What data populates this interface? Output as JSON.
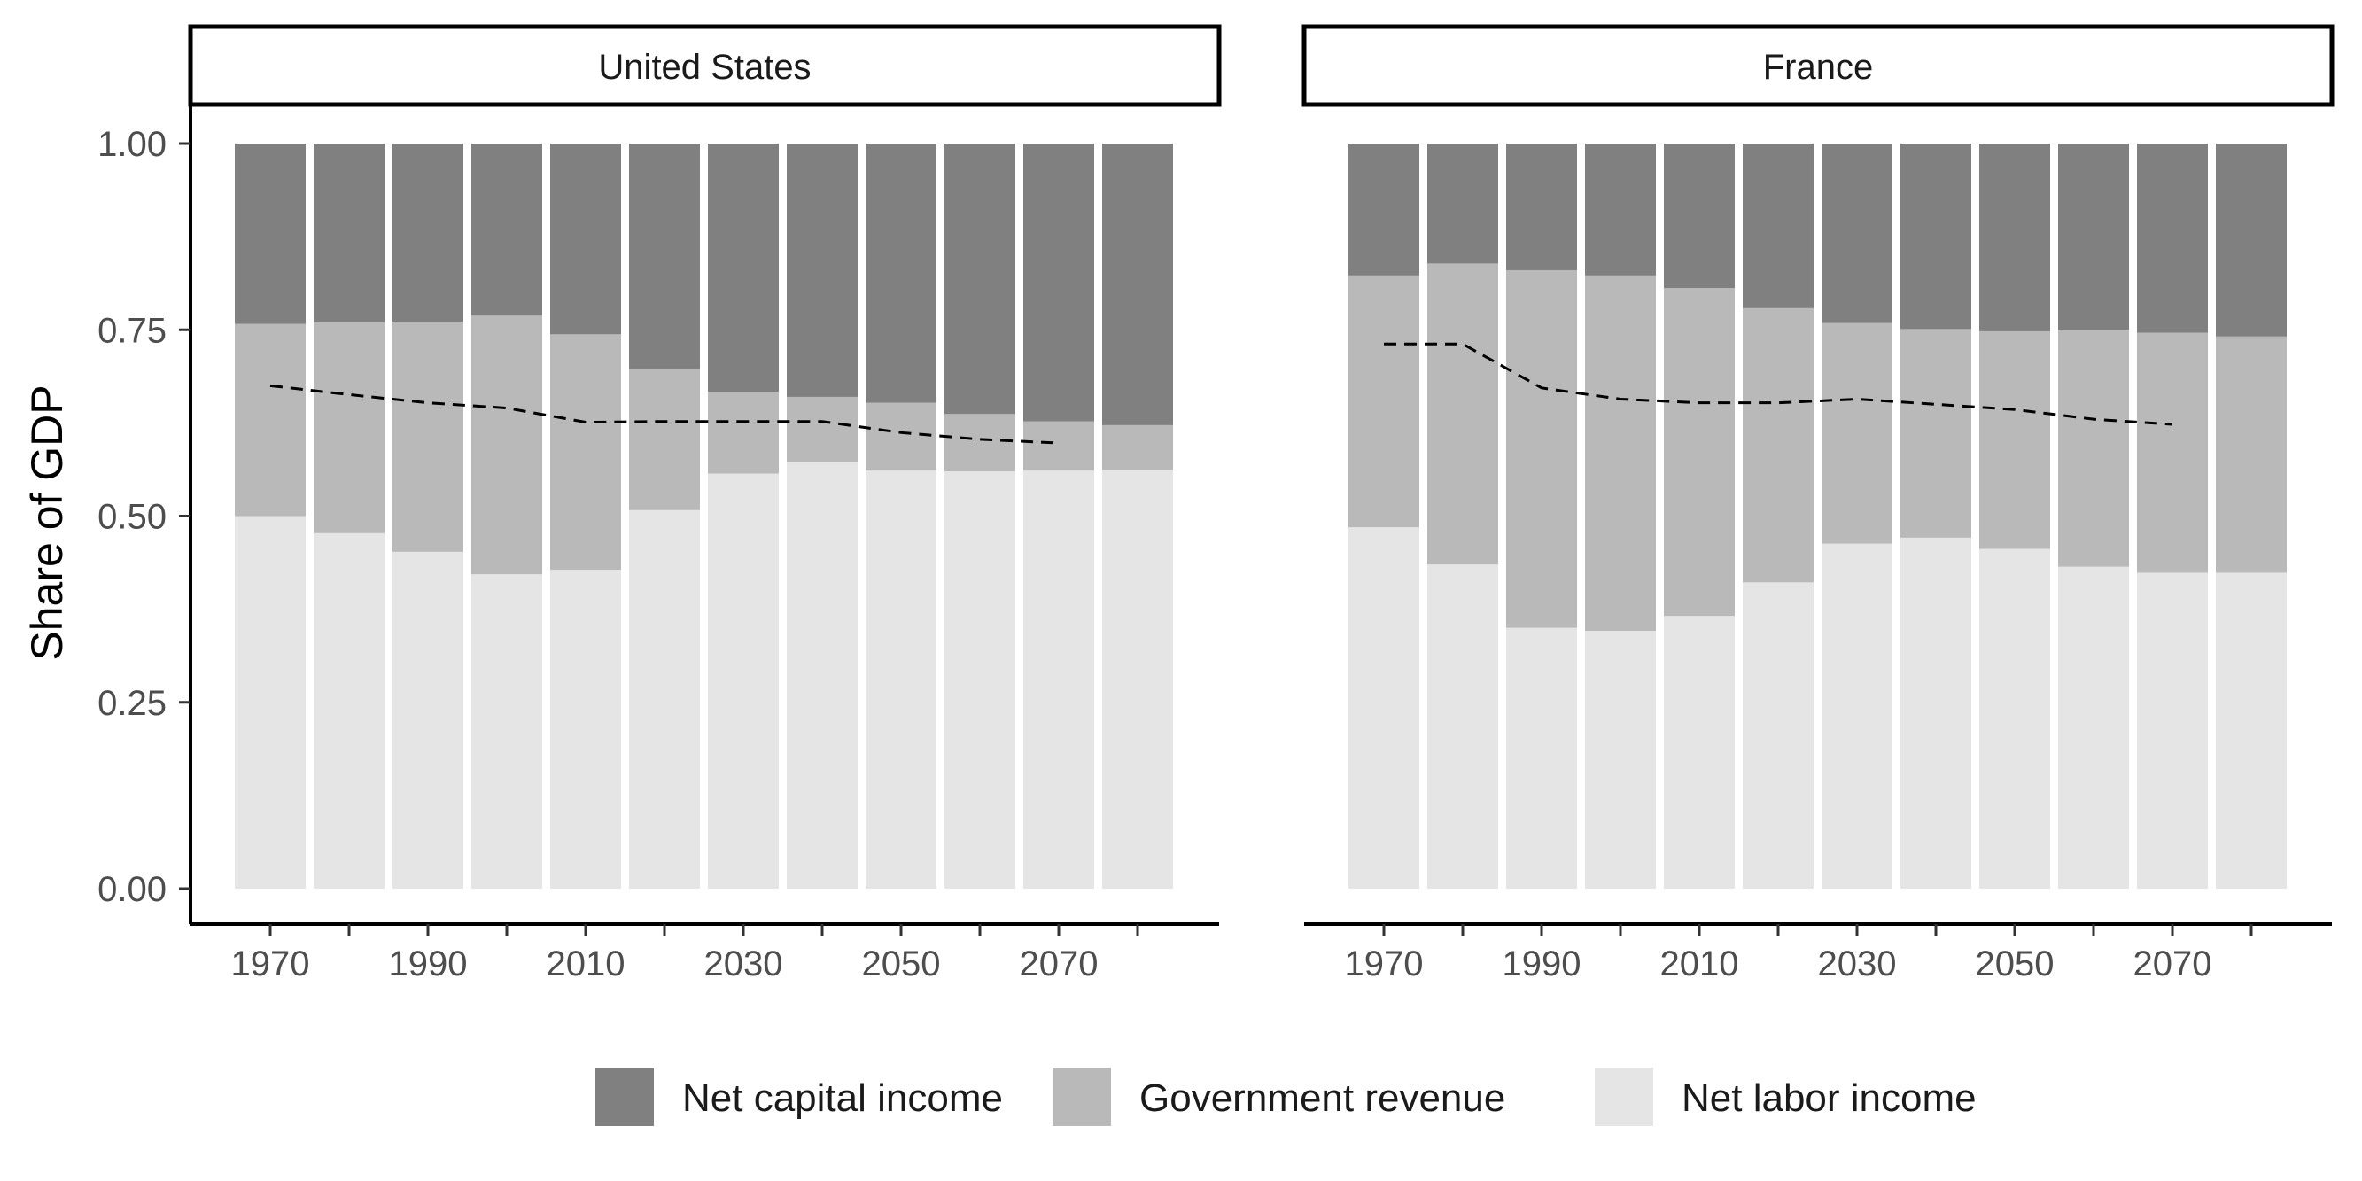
{
  "chart_data": {
    "type": "bar",
    "stacked": true,
    "ylabel": "Share of GDP",
    "ylim": [
      0,
      1
    ],
    "yticks": [
      "0.00",
      "0.25",
      "0.50",
      "0.75",
      "1.00"
    ],
    "ytick_values": [
      0,
      0.25,
      0.5,
      0.75,
      1.0
    ],
    "x": [
      1970,
      1980,
      1990,
      2000,
      2010,
      2020,
      2030,
      2040,
      2050,
      2060,
      2070,
      2080
    ],
    "xtick_labels": [
      "1970",
      "",
      "1990",
      "",
      "2010",
      "",
      "2030",
      "",
      "2050",
      "",
      "2070",
      ""
    ],
    "legend": {
      "position": "bottom",
      "entries": [
        {
          "name": "Net capital income",
          "color": "#808080"
        },
        {
          "name": "Government revenue",
          "color": "#b9b9b9"
        },
        {
          "name": "Net labor income",
          "color": "#e5e5e5"
        }
      ]
    },
    "panels": [
      {
        "title": "United States",
        "net_labor_income": [
          0.5,
          0.477,
          0.452,
          0.422,
          0.428,
          0.508,
          0.557,
          0.572,
          0.561,
          0.56,
          0.561,
          0.562
        ],
        "government_revenue": [
          0.258,
          0.283,
          0.309,
          0.347,
          0.316,
          0.19,
          0.11,
          0.088,
          0.091,
          0.077,
          0.066,
          0.06
        ],
        "net_capital_income": [
          0.242,
          0.24,
          0.239,
          0.231,
          0.256,
          0.302,
          0.333,
          0.34,
          0.348,
          0.363,
          0.373,
          0.378
        ],
        "dashed_line": [
          0.675,
          0.663,
          0.652,
          0.645,
          0.626,
          0.627,
          0.627,
          0.627,
          0.612,
          0.603,
          0.598,
          null
        ]
      },
      {
        "title": "France",
        "net_labor_income": [
          0.485,
          0.435,
          0.35,
          0.346,
          0.366,
          0.411,
          0.463,
          0.471,
          0.456,
          0.432,
          0.424,
          0.424
        ],
        "government_revenue": [
          0.338,
          0.404,
          0.48,
          0.477,
          0.44,
          0.368,
          0.296,
          0.28,
          0.292,
          0.318,
          0.322,
          0.317
        ],
        "net_capital_income": [
          0.177,
          0.161,
          0.17,
          0.177,
          0.194,
          0.221,
          0.241,
          0.249,
          0.252,
          0.25,
          0.254,
          0.259
        ],
        "dashed_line": [
          0.731,
          0.731,
          0.672,
          0.657,
          0.652,
          0.652,
          0.657,
          0.65,
          0.643,
          0.63,
          0.623,
          null
        ]
      }
    ]
  }
}
